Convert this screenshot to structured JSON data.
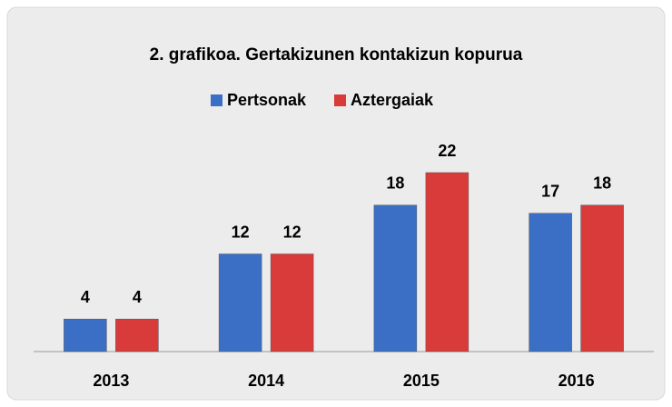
{
  "chart_data": {
    "type": "bar",
    "title": "2. grafikoa. Gertakizunen kontakizun kopurua",
    "categories": [
      "2013",
      "2014",
      "2015",
      "2016"
    ],
    "series": [
      {
        "name": "Pertsonak",
        "color": "#3b6fc6",
        "values": [
          4,
          12,
          18,
          17
        ]
      },
      {
        "name": "Aztergaiak",
        "color": "#d93a3a",
        "values": [
          4,
          12,
          22,
          18
        ]
      }
    ],
    "ylim": [
      0,
      22
    ],
    "legend": "top"
  }
}
